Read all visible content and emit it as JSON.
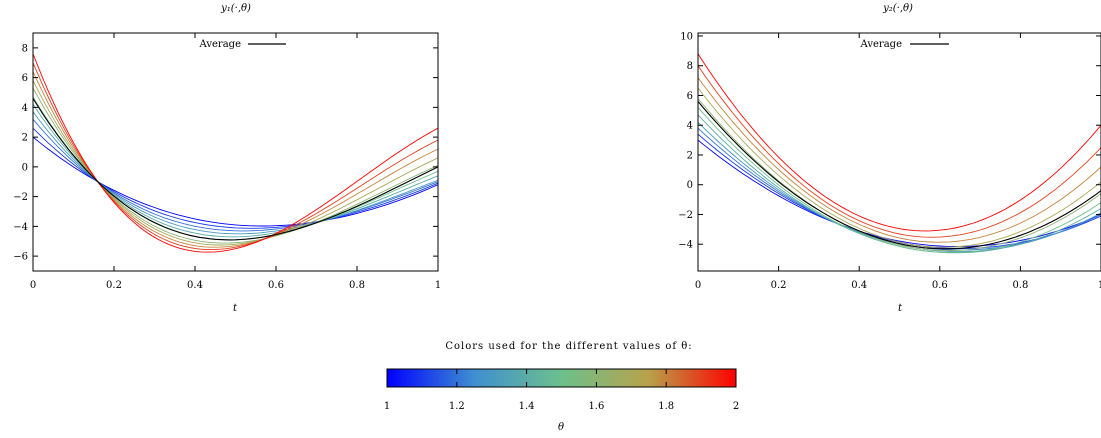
{
  "colorbar": {
    "caption": "Colors used for the different values of θ:",
    "ticks": [
      "1",
      "1.2",
      "1.4",
      "1.6",
      "1.8",
      "2"
    ],
    "label": "θ",
    "range": [
      1,
      2
    ],
    "colors": [
      "#0000ff",
      "#3f8fd0",
      "#6cc08c",
      "#b8a24a",
      "#ff0000"
    ]
  },
  "chart_data": [
    {
      "type": "line",
      "title": "y₁(·,θ)",
      "xlabel": "t",
      "ylabel": "",
      "xlim": [
        0,
        1
      ],
      "ylim": [
        -7,
        9
      ],
      "xticks": [
        "0",
        "0.2",
        "0.4",
        "0.6",
        "0.8",
        "1"
      ],
      "yticks": [
        "−6",
        "−4",
        "−2",
        "0",
        "2",
        "4",
        "6",
        "8"
      ],
      "ytick_values": [
        -6,
        -4,
        -2,
        0,
        2,
        4,
        6,
        8
      ],
      "legend": {
        "label": "Average",
        "position": "top-center"
      },
      "x": [
        0,
        0.16,
        0.5,
        1
      ],
      "theta": [
        1,
        1.1,
        1.2,
        1.3,
        1.4,
        1.5,
        1.6,
        1.7,
        1.8,
        1.9,
        2
      ],
      "series": [
        {
          "theta": 1.0,
          "values": [
            2.0,
            -1.0,
            -3.9,
            -1.2
          ]
        },
        {
          "theta": 1.1,
          "values": [
            2.6,
            -1.0,
            -4.1,
            -1.1
          ]
        },
        {
          "theta": 1.2,
          "values": [
            3.2,
            -1.0,
            -4.3,
            -1.0
          ]
        },
        {
          "theta": 1.3,
          "values": [
            3.7,
            -1.0,
            -4.5,
            -0.9
          ]
        },
        {
          "theta": 1.4,
          "values": [
            4.2,
            -1.0,
            -4.7,
            -0.6
          ]
        },
        {
          "theta": 1.5,
          "values": [
            4.7,
            -1.0,
            -4.9,
            -0.3
          ]
        },
        {
          "theta": 1.6,
          "values": [
            5.3,
            -1.0,
            -5.1,
            0.1
          ]
        },
        {
          "theta": 1.7,
          "values": [
            5.8,
            -1.0,
            -5.2,
            0.6
          ]
        },
        {
          "theta": 1.8,
          "values": [
            6.4,
            -1.0,
            -5.3,
            1.2
          ]
        },
        {
          "theta": 1.9,
          "values": [
            7.0,
            -1.0,
            -5.4,
            1.8
          ]
        },
        {
          "theta": 2.0,
          "values": [
            7.6,
            -1.0,
            -5.5,
            2.6
          ]
        }
      ],
      "average": {
        "values": [
          4.6,
          -1.0,
          -4.9,
          0.0
        ]
      }
    },
    {
      "type": "line",
      "title": "y₂(·,θ)",
      "xlabel": "t",
      "ylabel": "",
      "xlim": [
        0,
        1
      ],
      "ylim": [
        -5.8,
        10.2
      ],
      "xticks": [
        "0",
        "0.2",
        "0.4",
        "0.6",
        "0.8",
        "1"
      ],
      "yticks": [
        "−4",
        "−2",
        "0",
        "2",
        "4",
        "6",
        "8",
        "10"
      ],
      "ytick_values": [
        -4,
        -2,
        0,
        2,
        4,
        6,
        8,
        10
      ],
      "legend": {
        "label": "Average",
        "position": "top-center"
      },
      "x": [
        0,
        0.55,
        1
      ],
      "theta": [
        1,
        1.1,
        1.2,
        1.3,
        1.4,
        1.5,
        1.6,
        1.7,
        1.8,
        1.9,
        2
      ],
      "series": [
        {
          "theta": 1.0,
          "values": [
            3.0,
            -4.0,
            -2.0
          ]
        },
        {
          "theta": 1.1,
          "values": [
            3.4,
            -4.1,
            -2.1
          ]
        },
        {
          "theta": 1.2,
          "values": [
            3.8,
            -4.2,
            -2.0
          ]
        },
        {
          "theta": 1.3,
          "values": [
            4.2,
            -4.3,
            -1.9
          ]
        },
        {
          "theta": 1.4,
          "values": [
            4.7,
            -4.4,
            -1.6
          ]
        },
        {
          "theta": 1.5,
          "values": [
            5.2,
            -4.4,
            -1.2
          ]
        },
        {
          "theta": 1.6,
          "values": [
            5.8,
            -4.3,
            -0.6
          ]
        },
        {
          "theta": 1.7,
          "values": [
            6.5,
            -4.1,
            0.2
          ]
        },
        {
          "theta": 1.8,
          "values": [
            7.2,
            -3.8,
            1.2
          ]
        },
        {
          "theta": 1.9,
          "values": [
            8.0,
            -3.5,
            2.5
          ]
        },
        {
          "theta": 2.0,
          "values": [
            8.8,
            -3.1,
            4.0
          ]
        }
      ],
      "average": {
        "values": [
          5.6,
          -4.2,
          -0.4
        ]
      }
    }
  ]
}
